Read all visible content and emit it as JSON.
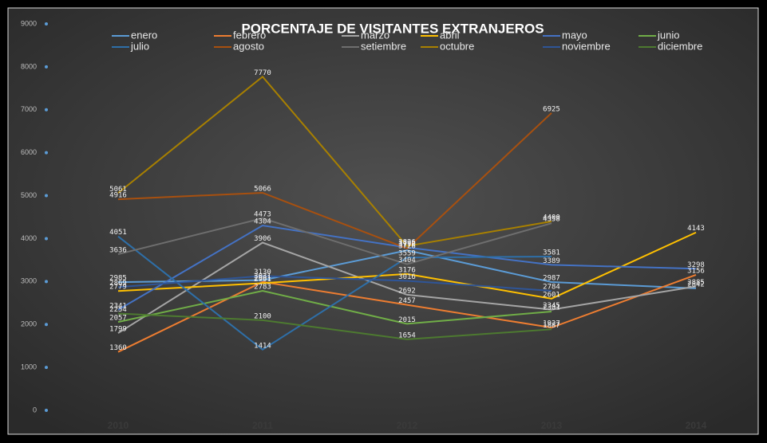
{
  "chart_data": {
    "type": "line",
    "title": "PORCENTAJE DE VISITANTES EXTRANJEROS",
    "categories": [
      "2010",
      "2011",
      "2012",
      "2013",
      "2014"
    ],
    "ylim": [
      0,
      9000
    ],
    "yticks": [
      0,
      1000,
      2000,
      3000,
      4000,
      5000,
      6000,
      7000,
      8000,
      9000
    ],
    "series": [
      {
        "name": "enero",
        "color": "#5b9bd5",
        "values": [
          2985,
          3031,
          3726,
          2987,
          2842
        ]
      },
      {
        "name": "febrero",
        "color": "#ed7d31",
        "values": [
          1360,
          2991,
          2457,
          1927,
          3156
        ]
      },
      {
        "name": "marzo",
        "color": "#a5a5a5",
        "values": [
          1799,
          3906,
          2692,
          2345,
          2885
        ]
      },
      {
        "name": "abril",
        "color": "#ffc000",
        "values": [
          2779,
          2961,
          3176,
          2601,
          4143
        ]
      },
      {
        "name": "mayo",
        "color": "#4472c4",
        "values": [
          2341,
          4304,
          3792,
          3389,
          3298
        ]
      },
      {
        "name": "junio",
        "color": "#70ad47",
        "values": [
          2057,
          2783,
          2015,
          2301,
          null
        ]
      },
      {
        "name": "julio",
        "color": "#2e6fa8",
        "values": [
          4051,
          1414,
          3559,
          3581,
          null
        ]
      },
      {
        "name": "agosto",
        "color": "#a8500f",
        "values": [
          4916,
          5066,
          3770,
          6925,
          null
        ]
      },
      {
        "name": "setiembre",
        "color": "#6e6e6e",
        "values": [
          3636,
          4473,
          3404,
          4358,
          null
        ]
      },
      {
        "name": "octubre",
        "color": "#a88000",
        "values": [
          5061,
          7770,
          3826,
          4400,
          null
        ]
      },
      {
        "name": "noviembre",
        "color": "#2f5597",
        "values": [
          2869,
          3130,
          3016,
          2784,
          null
        ]
      },
      {
        "name": "diciembre",
        "color": "#4d7a30",
        "values": [
          2254,
          2100,
          1654,
          1887,
          null
        ]
      }
    ]
  }
}
